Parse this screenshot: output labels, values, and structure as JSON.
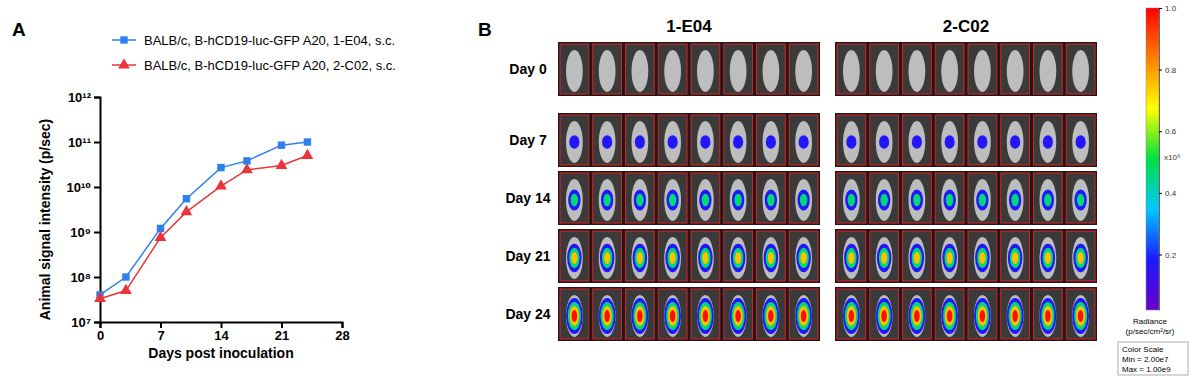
{
  "panel_labels": [
    "A",
    "B"
  ],
  "chart_data": {
    "type": "line",
    "x_label": "Days post inoculation",
    "y_label": "Animal signal intensity (p/sec)",
    "x": [
      0,
      3,
      7,
      10,
      14,
      17,
      21,
      24
    ],
    "series": [
      {
        "name": "BALB/c, B-hCD19-luc-GFP A20, 1-E04, s.c.",
        "color": "#2f80ed",
        "marker": "square",
        "values": [
          40000000,
          100000000,
          1200000000,
          5500000000,
          27000000000,
          38000000000,
          85000000000,
          100000000000
        ]
      },
      {
        "name": "BALB/c, B-hCD19-luc-GFP A20, 2-C02, s.c.",
        "color": "#e8353a",
        "marker": "triangle",
        "values": [
          33000000,
          50000000,
          750000000,
          2800000000,
          10500000000,
          24000000000,
          30000000000,
          50000000000
        ]
      }
    ],
    "xlim": [
      0,
      28
    ],
    "xticks": [
      0,
      7,
      14,
      21,
      28
    ],
    "ylim": [
      10000000,
      1000000000000
    ],
    "yticks": [
      {
        "value": 10000000,
        "label": "10⁷"
      },
      {
        "value": 100000000,
        "label": "10⁸"
      },
      {
        "value": 1000000000,
        "label": "10⁹"
      },
      {
        "value": 10000000000,
        "label": "10¹⁰"
      },
      {
        "value": 100000000000,
        "label": "10¹¹"
      },
      {
        "value": 1000000000000,
        "label": "10¹²"
      }
    ],
    "log": "y",
    "legend": "top"
  },
  "imaging": {
    "columns": [
      "1-E04",
      "2-C02"
    ],
    "rows": [
      "Day 0",
      "Day 7",
      "Day 14",
      "Day 21",
      "Day 24"
    ],
    "colorbar": {
      "range": [
        0.02,
        1
      ],
      "ticks": [
        0.2,
        0.4,
        0.6,
        0.8,
        {
          "value": 1,
          "label": "1.0"
        }
      ],
      "multiplier": "x10⁹",
      "title": [
        "Radiance",
        "(p/sec/cm²/sr)"
      ],
      "scale_title": "Color Scale",
      "scale_min": "Min = 2.00e7",
      "scale_max": "Max = 1.00e9"
    }
  }
}
